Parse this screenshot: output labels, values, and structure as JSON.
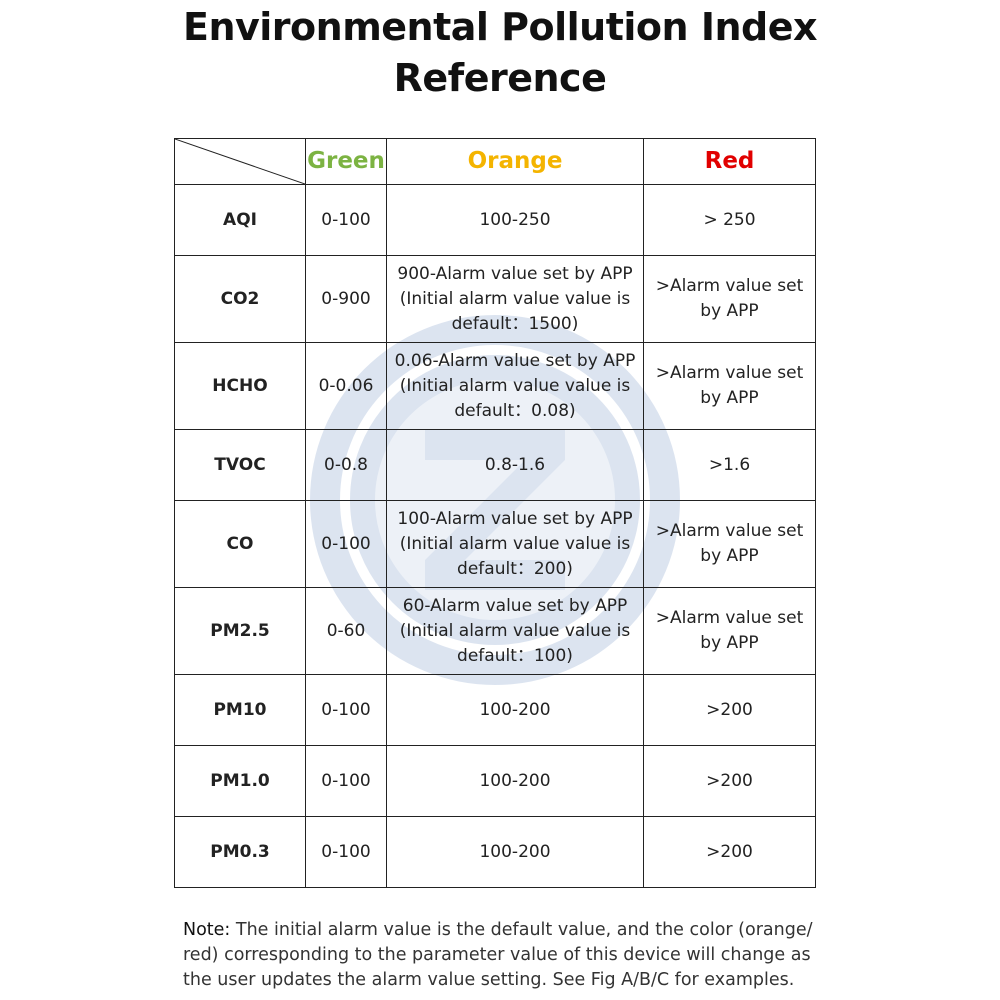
{
  "title": {
    "line1": "Environmental Pollution Index",
    "line2": "Reference"
  },
  "table": {
    "headers": {
      "green": "Green",
      "orange": "Orange",
      "red": "Red"
    },
    "header_colors": {
      "green": "#7cb342",
      "orange": "#f4b400",
      "red": "#e10000"
    },
    "rows": [
      {
        "param": "AQI",
        "green": "0-100",
        "orange": [
          "100-250"
        ],
        "red": [
          "> 250"
        ]
      },
      {
        "param": "CO2",
        "green": "0-900",
        "orange": [
          "900-Alarm value set by APP",
          "(Initial alarm value value is",
          "default：1500)"
        ],
        "red": [
          ">Alarm value set",
          "by APP"
        ]
      },
      {
        "param": "HCHO",
        "green": "0-0.06",
        "orange": [
          "0.06-Alarm value set by APP",
          "(Initial alarm value value is",
          "default：0.08)"
        ],
        "red": [
          ">Alarm value set",
          "by APP"
        ]
      },
      {
        "param": "TVOC",
        "green": "0-0.8",
        "orange": [
          "0.8-1.6"
        ],
        "red": [
          ">1.6"
        ]
      },
      {
        "param": "CO",
        "green": "0-100",
        "orange": [
          "100-Alarm value set by APP",
          "(Initial alarm value value is",
          "default：200)"
        ],
        "red": [
          ">Alarm value set",
          "by APP"
        ]
      },
      {
        "param": "PM2.5",
        "green": "0-60",
        "orange": [
          "60-Alarm value set by APP",
          "(Initial alarm value value is",
          "default：100)"
        ],
        "red": [
          ">Alarm value set",
          "by APP"
        ]
      },
      {
        "param": "PM10",
        "green": "0-100",
        "orange": [
          "100-200"
        ],
        "red": [
          ">200"
        ]
      },
      {
        "param": "PM1.0",
        "green": "0-100",
        "orange": [
          "100-200"
        ],
        "red": [
          ">200"
        ]
      },
      {
        "param": "PM0.3",
        "green": "0-100",
        "orange": [
          "100-200"
        ],
        "red": [
          ">200"
        ]
      }
    ]
  },
  "note": {
    "label": "Note:",
    "text": " The initial alarm value is the default value, and the color (orange/ red) corresponding to the parameter value of this device will change as the user updates the alarm value setting. See Fig A/B/C for examples."
  }
}
